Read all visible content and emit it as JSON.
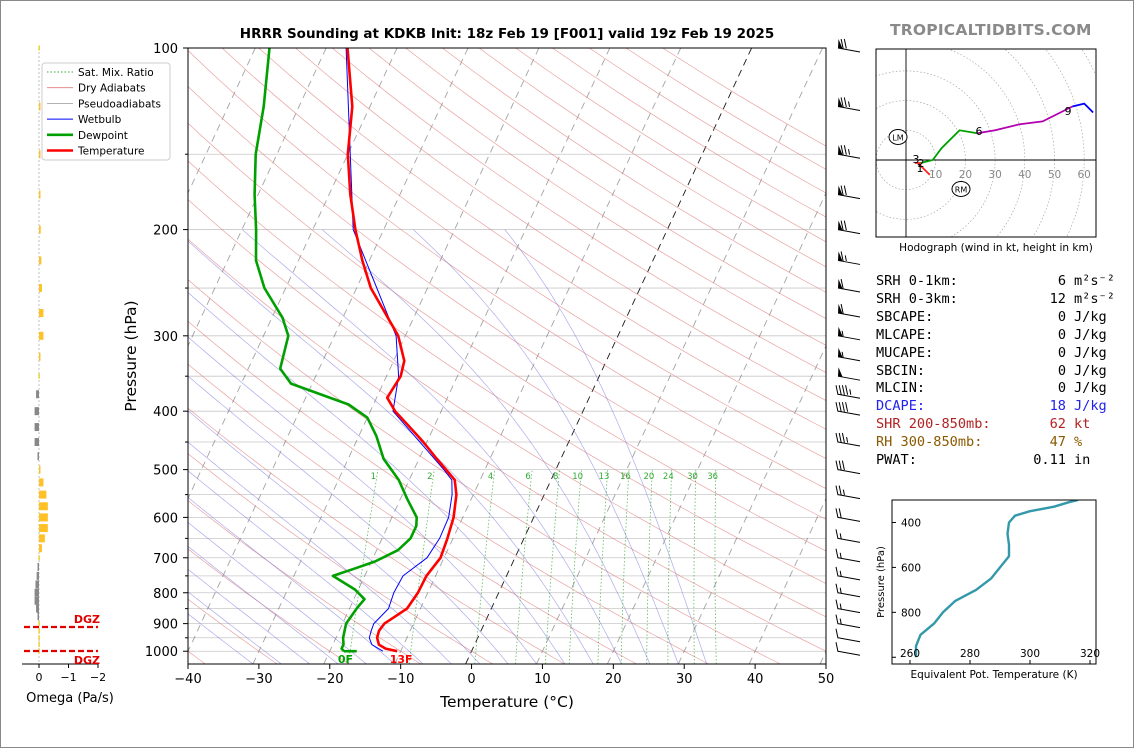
{
  "brand": "TROPICALTIDBITS.COM",
  "title": "HRRR Sounding at KDKB Init: 18z Feb 19 [F001] valid 19z Feb 19 2025",
  "colors": {
    "temperature": "#ff0000",
    "dewpoint": "#00a000",
    "wetbulb": "#0000ff",
    "theta_e": "#3399aa",
    "hodo_0_3": "#ff2020",
    "hodo_3_6": "#00a000",
    "hodo_6_9": "#b000b0",
    "hodo_9_12": "#0000ff"
  },
  "chart_data": [
    {
      "type": "line",
      "name": "skewt",
      "title": "HRRR Sounding at KDKB Init: 18z Feb 19 [F001] valid 19z Feb 19 2025",
      "xlabel": "Temperature (°C)",
      "ylabel": "Pressure (hPa)",
      "xlim": [
        -40,
        50
      ],
      "ylim": [
        1050,
        100
      ],
      "yscale": "log",
      "grid": true,
      "x_ticks": [
        "−40",
        "−30",
        "−20",
        "−10",
        "0",
        "10",
        "20",
        "30",
        "40",
        "50"
      ],
      "y_ticks": [
        "100",
        "200",
        "300",
        "400",
        "500",
        "600",
        "700",
        "800",
        "900",
        "1000"
      ],
      "legend": {
        "placement": "upper-left",
        "entries": [
          "Sat. Mix. Ratio",
          "Dry Adiabats",
          "Pseudoadiabats",
          "Wetbulb",
          "Dewpoint",
          "Temperature"
        ]
      },
      "mixing_ratio_labels": [
        "1",
        "2",
        "4",
        "6",
        "8",
        "10",
        "13",
        "16",
        "20",
        "24",
        "30",
        "36"
      ],
      "surface_labels": {
        "dewpoint": "0F",
        "temperature": "13F"
      },
      "series": [
        {
          "name": "Temperature",
          "points": [
            [
              1000,
              -10.5
            ],
            [
              990,
              -12.3
            ],
            [
              975,
              -13.5
            ],
            [
              950,
              -14.2
            ],
            [
              925,
              -14.4
            ],
            [
              900,
              -14.1
            ],
            [
              875,
              -13.0
            ],
            [
              850,
              -11.9
            ],
            [
              800,
              -11.4
            ],
            [
              750,
              -11.3
            ],
            [
              700,
              -10.5
            ],
            [
              650,
              -10.8
            ],
            [
              600,
              -11.3
            ],
            [
              550,
              -12.4
            ],
            [
              520,
              -13.6
            ],
            [
              500,
              -15.5
            ],
            [
              480,
              -17.5
            ],
            [
              450,
              -20.5
            ],
            [
              420,
              -24.0
            ],
            [
              400,
              -26.5
            ],
            [
              380,
              -28.5
            ],
            [
              350,
              -28.0
            ],
            [
              330,
              -28.5
            ],
            [
              300,
              -31.0
            ],
            [
              250,
              -38.0
            ],
            [
              225,
              -41.0
            ],
            [
              200,
              -44.0
            ],
            [
              175,
              -47.0
            ],
            [
              150,
              -50.0
            ],
            [
              125,
              -52.5
            ],
            [
              100,
              -57.0
            ]
          ]
        },
        {
          "name": "Dewpoint",
          "points": [
            [
              1000,
              -18.0
            ],
            [
              990,
              -18.5
            ],
            [
              975,
              -18.5
            ],
            [
              950,
              -19.0
            ],
            [
              900,
              -19.5
            ],
            [
              850,
              -19.0
            ],
            [
              820,
              -18.5
            ],
            [
              790,
              -20.5
            ],
            [
              750,
              -24.5
            ],
            [
              730,
              -22.0
            ],
            [
              710,
              -19.5
            ],
            [
              680,
              -17.0
            ],
            [
              650,
              -16.0
            ],
            [
              620,
              -16.0
            ],
            [
              600,
              -16.5
            ],
            [
              560,
              -19.0
            ],
            [
              520,
              -21.5
            ],
            [
              480,
              -25.0
            ],
            [
              440,
              -27.5
            ],
            [
              410,
              -30.0
            ],
            [
              390,
              -33.5
            ],
            [
              360,
              -43.0
            ],
            [
              340,
              -45.5
            ],
            [
              300,
              -46.5
            ],
            [
              280,
              -48.5
            ],
            [
              250,
              -53.0
            ],
            [
              225,
              -56.0
            ],
            [
              200,
              -58.0
            ],
            [
              175,
              -60.5
            ],
            [
              150,
              -63.0
            ],
            [
              125,
              -65.0
            ],
            [
              100,
              -68.0
            ]
          ]
        },
        {
          "name": "Wetbulb",
          "points": [
            [
              1000,
              -12.5
            ],
            [
              975,
              -14.5
            ],
            [
              950,
              -15.3
            ],
            [
              925,
              -15.5
            ],
            [
              900,
              -15.6
            ],
            [
              850,
              -14.5
            ],
            [
              800,
              -14.8
            ],
            [
              750,
              -14.6
            ],
            [
              700,
              -12.4
            ],
            [
              650,
              -11.9
            ],
            [
              600,
              -12.0
            ],
            [
              550,
              -13.0
            ],
            [
              520,
              -14.0
            ],
            [
              500,
              -15.8
            ],
            [
              400,
              -26.8
            ],
            [
              350,
              -28.3
            ],
            [
              300,
              -31.3
            ],
            [
              200,
              -44.3
            ],
            [
              100,
              -57.2
            ]
          ]
        }
      ]
    },
    {
      "type": "line",
      "name": "hodograph",
      "title": "Hodograph (wind in kt, height in km)",
      "x_tick_labels": [
        "10",
        "20",
        "30",
        "40",
        "50",
        "60"
      ],
      "ring_labels": [
        "LM",
        "RM"
      ],
      "height_labels": [
        "1",
        "2",
        "3",
        "6",
        "9"
      ],
      "series": [
        {
          "name": "0-3 km",
          "points": [
            [
              8,
              -5
            ],
            [
              7,
              -4
            ],
            [
              4,
              -1
            ],
            [
              3,
              -1
            ],
            [
              5,
              -1
            ]
          ]
        },
        {
          "name": "3-6 km",
          "points": [
            [
              5,
              -1
            ],
            [
              9,
              0
            ],
            [
              12,
              4
            ],
            [
              18,
              10
            ],
            [
              24,
              9
            ]
          ]
        },
        {
          "name": "6-9 km",
          "points": [
            [
              24,
              9
            ],
            [
              30,
              10
            ],
            [
              38,
              12
            ],
            [
              46,
              13
            ],
            [
              52,
              16
            ],
            [
              56,
              18
            ]
          ]
        },
        {
          "name": "9-12 km",
          "points": [
            [
              56,
              18
            ],
            [
              60,
              19
            ],
            [
              61,
              18
            ],
            [
              63,
              16
            ]
          ]
        }
      ]
    },
    {
      "type": "bar",
      "name": "omega",
      "xlabel": "Omega (Pa/s)",
      "x_ticks": [
        "0",
        "−1",
        "−2"
      ],
      "dgz_label": "DGZ",
      "levels": [
        1000,
        975,
        950,
        925,
        900,
        875,
        850,
        825,
        800,
        775,
        750,
        725,
        700,
        675,
        650,
        625,
        600,
        575,
        550,
        525,
        500,
        475,
        450,
        425,
        400,
        375,
        350,
        325,
        300,
        275,
        250,
        225,
        200,
        175,
        150,
        125,
        100
      ],
      "values": [
        0.0,
        0.0,
        0.0,
        0.0,
        0.0,
        0.05,
        0.1,
        0.15,
        0.15,
        0.12,
        0.08,
        0.05,
        0.0,
        -0.1,
        -0.2,
        -0.3,
        -0.3,
        -0.3,
        -0.25,
        -0.15,
        -0.05,
        0.05,
        0.15,
        0.15,
        0.15,
        0.1,
        0.0,
        -0.05,
        -0.15,
        -0.15,
        -0.1,
        -0.08,
        -0.06,
        -0.05,
        -0.05,
        -0.05,
        0.0
      ]
    },
    {
      "type": "line",
      "name": "theta-e",
      "xlabel": "Equivalent Pot. Temperature (K)",
      "ylabel": "Pressure (hPa)",
      "x_ticks": [
        "260",
        "280",
        "300",
        "320"
      ],
      "y_ticks": [
        "400",
        "600",
        "800"
      ],
      "series": [
        {
          "name": "theta-e",
          "points": [
            [
              1000,
              262.0
            ],
            [
              950,
              262.0
            ],
            [
              900,
              263.5
            ],
            [
              850,
              268.0
            ],
            [
              800,
              271.0
            ],
            [
              750,
              275.0
            ],
            [
              700,
              282.0
            ],
            [
              650,
              287.0
            ],
            [
              600,
              290.0
            ],
            [
              550,
              293.0
            ],
            [
              500,
              293.0
            ],
            [
              450,
              292.5
            ],
            [
              400,
              293.0
            ],
            [
              370,
              295.0
            ],
            [
              350,
              300.0
            ],
            [
              330,
              308.0
            ],
            [
              310,
              313.0
            ],
            [
              300,
              316.0
            ]
          ]
        }
      ]
    }
  ],
  "stats": [
    {
      "label": "SRH 0-1km:",
      "value": "6",
      "unit": "m²s⁻²",
      "color": "#000000"
    },
    {
      "label": "SRH 0-3km:",
      "value": "12",
      "unit": "m²s⁻²",
      "color": "#000000"
    },
    {
      "label": "SBCAPE:",
      "value": "0",
      "unit": "J/kg",
      "color": "#000000"
    },
    {
      "label": "MLCAPE:",
      "value": "0",
      "unit": "J/kg",
      "color": "#000000"
    },
    {
      "label": "MUCAPE:",
      "value": "0",
      "unit": "J/kg",
      "color": "#000000"
    },
    {
      "label": "SBCIN:",
      "value": "0",
      "unit": "J/kg",
      "color": "#000000"
    },
    {
      "label": "MLCIN:",
      "value": "0",
      "unit": "J/kg",
      "color": "#000000"
    },
    {
      "label": "DCAPE:",
      "value": "18",
      "unit": "J/kg",
      "color": "#2222ee"
    },
    {
      "label": "SHR 200-850mb:",
      "value": "62",
      "unit": "kt",
      "color": "#b22222"
    },
    {
      "label": "RH 300-850mb:",
      "value": "47",
      "unit": "%",
      "color": "#8b5a00"
    },
    {
      "label": "PWAT:",
      "value": "0.11",
      "unit": "in",
      "color": "#000000"
    }
  ],
  "wind_barbs": [
    {
      "p": 100,
      "speed": 70
    },
    {
      "p": 125,
      "speed": 75
    },
    {
      "p": 150,
      "speed": 75
    },
    {
      "p": 175,
      "speed": 70
    },
    {
      "p": 200,
      "speed": 70
    },
    {
      "p": 225,
      "speed": 65
    },
    {
      "p": 250,
      "speed": 60
    },
    {
      "p": 275,
      "speed": 60
    },
    {
      "p": 300,
      "speed": 55
    },
    {
      "p": 325,
      "speed": 55
    },
    {
      "p": 350,
      "speed": 50
    },
    {
      "p": 375,
      "speed": 45
    },
    {
      "p": 400,
      "speed": 40
    },
    {
      "p": 450,
      "speed": 35
    },
    {
      "p": 500,
      "speed": 30
    },
    {
      "p": 550,
      "speed": 25
    },
    {
      "p": 600,
      "speed": 20
    },
    {
      "p": 650,
      "speed": 15
    },
    {
      "p": 700,
      "speed": 15
    },
    {
      "p": 750,
      "speed": 15
    },
    {
      "p": 800,
      "speed": 15
    },
    {
      "p": 850,
      "speed": 15
    },
    {
      "p": 900,
      "speed": 15
    },
    {
      "p": 950,
      "speed": 10
    },
    {
      "p": 1000,
      "speed": 10
    }
  ]
}
